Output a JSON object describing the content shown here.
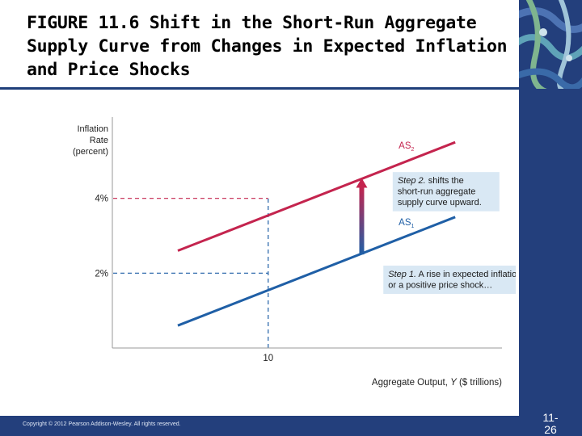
{
  "slide": {
    "title": "FIGURE 11.6  Shift in the Short-Run Aggregate Supply Curve from Changes in Expected Inflation and Price Shocks",
    "copyright": "Copyright © 2012 Pearson Addison-Wesley. All rights reserved.",
    "slide_number": "11-\n26"
  },
  "colors": {
    "brand_navy": "#233f7c",
    "as1_line": "#1f5fa6",
    "as2_line": "#c4244e",
    "callout_bg": "#d9e8f4"
  },
  "chart_data": {
    "type": "line",
    "title": "",
    "ylabel": [
      "Inflation",
      "Rate",
      "(percent)"
    ],
    "xlabel": {
      "prefix": "Aggregate Output, ",
      "var": "Y",
      "suffix": " ($ trillions)"
    },
    "xlim": [
      0,
      25
    ],
    "ylim": [
      0,
      6
    ],
    "x_ticks": [
      {
        "value": 10,
        "label": "10"
      }
    ],
    "y_ticks": [
      {
        "value": 4,
        "label": "4%"
      },
      {
        "value": 2,
        "label": "2%"
      }
    ],
    "grid": false,
    "series": [
      {
        "key": "as2",
        "name": "AS",
        "subscript": "2",
        "color": "#c4244e",
        "x": [
          4.2,
          22
        ],
        "y": [
          2.6,
          5.5
        ]
      },
      {
        "key": "as1",
        "name": "AS",
        "subscript": "1",
        "color": "#1f5fa6",
        "x": [
          4.2,
          22
        ],
        "y": [
          0.6,
          3.5
        ]
      }
    ],
    "reference_lines": [
      {
        "type": "horizontal",
        "series": "as2",
        "value": 4,
        "to_x": 10
      },
      {
        "type": "horizontal",
        "series": "as1",
        "value": 2,
        "to_x": 10
      },
      {
        "type": "vertical",
        "value": 10,
        "from_y": 0,
        "to_y": 4
      }
    ],
    "shift_arrow": {
      "x": 16,
      "y_from": 2.5,
      "y_to": 4.5
    },
    "annotations": [
      {
        "key": "step2",
        "lead": "Step 2.",
        "lines": [
          " shifts the",
          "short-run aggregate",
          "supply curve upward."
        ],
        "x": 18.3,
        "y": 4.4
      },
      {
        "key": "step1",
        "lead": "Step 1.",
        "lines": [
          " A rise in expected inflation",
          "or a positive price shock…"
        ],
        "x": 17.7,
        "y": 1.9
      }
    ]
  }
}
